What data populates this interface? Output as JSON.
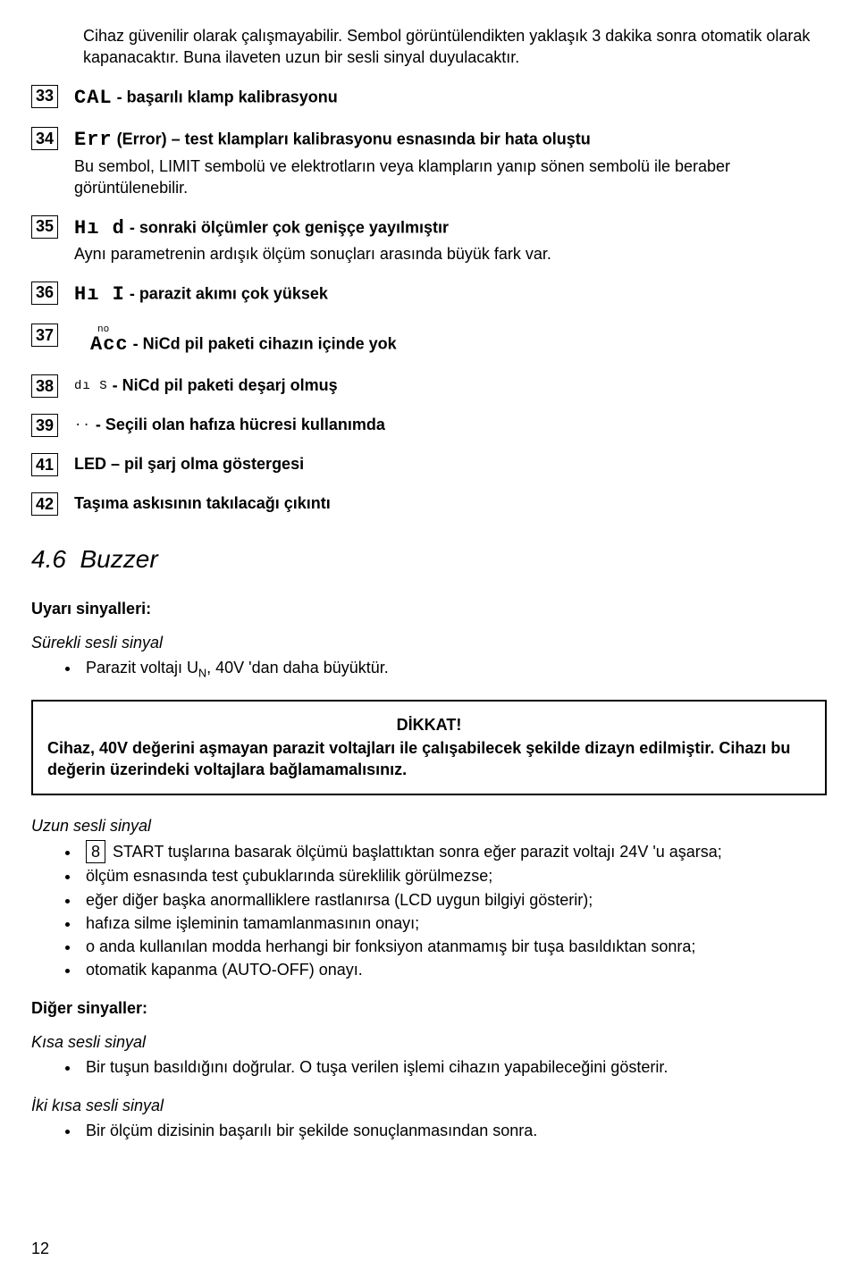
{
  "intro": "Cihaz güvenilir olarak çalışmayabilir. Sembol görüntülendikten yaklaşık 3 dakika sonra otomatik olarak kapanacaktır. Buna ilaveten uzun bir sesli sinyal duyulacaktır.",
  "items": [
    {
      "num": "33",
      "symbol": "CAL",
      "sep": " - ",
      "desc": "başarılı klamp kalibrasyonu",
      "sub": ""
    },
    {
      "num": "34",
      "symbol": "Err",
      "sep": " ",
      "desc": "(Error) – test klampları kalibrasyonu esnasında bir hata oluştu",
      "sub": "Bu sembol, LIMIT sembolü ve elektrotların veya klampların yanıp sönen sembolü ile beraber görüntülenebilir."
    },
    {
      "num": "35",
      "symbol": "Hı d",
      "sep": " - ",
      "desc": "sonraki ölçümler çok genişçe yayılmıştır",
      "sub": "Aynı parametrenin ardışık ölçüm sonuçları arasında büyük fark var."
    },
    {
      "num": "36",
      "symbol": "Hı I",
      "sep": " - ",
      "desc": "parazit akımı çok yüksek",
      "sub": ""
    },
    {
      "num": "37",
      "top": "no",
      "symbol": "Acc",
      "sep": " - ",
      "desc": "NiCd pil paketi cihazın içinde yok",
      "sub": ""
    },
    {
      "num": "38",
      "symbol_small": "dı S",
      "sep": " - ",
      "desc": "NiCd pil paketi deşarj olmuş",
      "sub": ""
    },
    {
      "num": "39",
      "symbol_small": "··",
      "sep": " - ",
      "desc": "Seçili olan hafıza hücresi kullanımda",
      "sub": ""
    },
    {
      "num": "41",
      "plain": "LED – pil şarj olma göstergesi",
      "sub": ""
    },
    {
      "num": "42",
      "plain": "Taşıma askısının takılacağı çıkıntı",
      "sub": ""
    }
  ],
  "section": {
    "num": "4.6",
    "title": "Buzzer"
  },
  "uyari_label": "Uyarı sinyalleri:",
  "surekli": {
    "title": "Sürekli sesli sinyal",
    "bullets_pre": "Parazit voltajı U",
    "bullets_sub": "N",
    "bullets_post": ", 40V 'dan daha büyüktür."
  },
  "warn": {
    "title": "DİKKAT!",
    "text": "Cihaz, 40V değerini aşmayan parazit voltajları ile çalışabilecek şekilde dizayn edilmiştir. Cihazı bu değerin üzerindeki voltajlara bağlamamalısınız."
  },
  "uzun": {
    "title": "Uzun sesli sinyal",
    "key": "8",
    "b1_pre": "START tuşlarına basarak ölçümü başlattıktan sonra eğer parazit voltajı 24V 'u aşarsa;",
    "b2": "ölçüm esnasında test çubuklarında süreklilik görülmezse;",
    "b3": "eğer diğer başka anormalliklere rastlanırsa (LCD uygun bilgiyi gösterir);",
    "b4": "hafıza silme işleminin tamamlanmasının onayı;",
    "b5": "o anda kullanılan modda herhangi bir fonksiyon atanmamış bir tuşa basıldıktan sonra;",
    "b6": "otomatik kapanma (AUTO-OFF) onayı."
  },
  "diger_label": "Diğer sinyaller:",
  "kisa": {
    "title": "Kısa sesli sinyal",
    "b1": "Bir tuşun basıldığını doğrular. O tuşa verilen işlemi cihazın yapabileceğini gösterir."
  },
  "iki": {
    "title": "İki kısa sesli sinyal",
    "b1": "Bir ölçüm dizisinin başarılı bir şekilde sonuçlanmasından sonra."
  },
  "page_num": "12"
}
